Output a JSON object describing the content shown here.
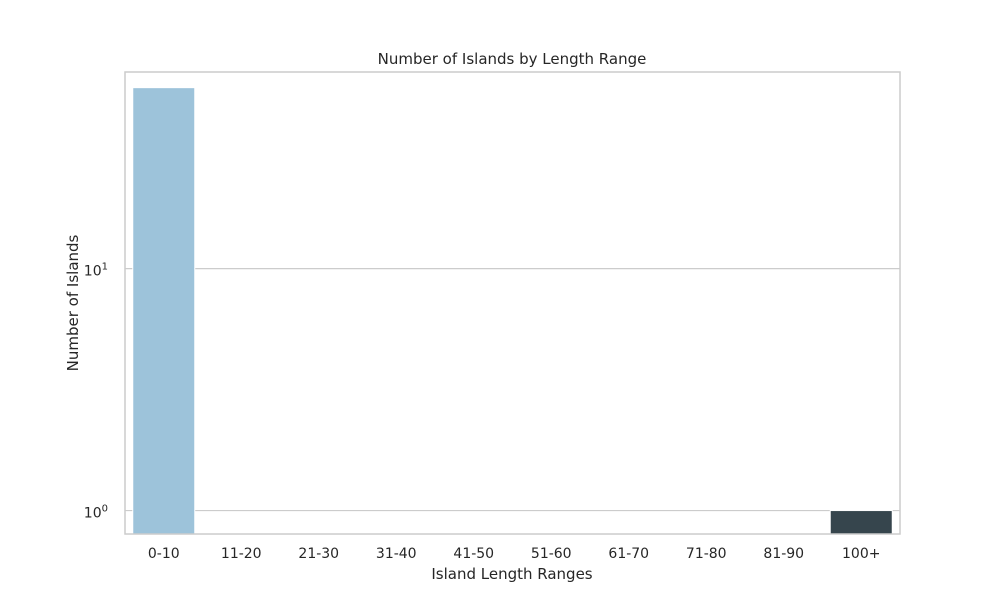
{
  "chart_data": {
    "type": "bar",
    "title": "Number of Islands by Length Range",
    "xlabel": "Island Length Ranges",
    "ylabel": "Number of Islands",
    "yscale": "log",
    "ylim": [
      0.8,
      65
    ],
    "grid": "y",
    "categories": [
      "0-10",
      "11-20",
      "21-30",
      "31-40",
      "41-50",
      "51-60",
      "61-70",
      "71-80",
      "81-90",
      "100+"
    ],
    "values": [
      56,
      0,
      0,
      0,
      0,
      0,
      0,
      0,
      0,
      1
    ],
    "bar_colors": [
      "#9dc3da",
      "#8bb4cc",
      "#7aa6be",
      "#6a97b0",
      "#5b88a1",
      "#4d7a93",
      "#416b83",
      "#375d73",
      "#304f63",
      "#36454d"
    ],
    "yticks": [
      {
        "value": 1,
        "base": "10",
        "exp": "0"
      },
      {
        "value": 10,
        "base": "10",
        "exp": "1"
      }
    ]
  }
}
